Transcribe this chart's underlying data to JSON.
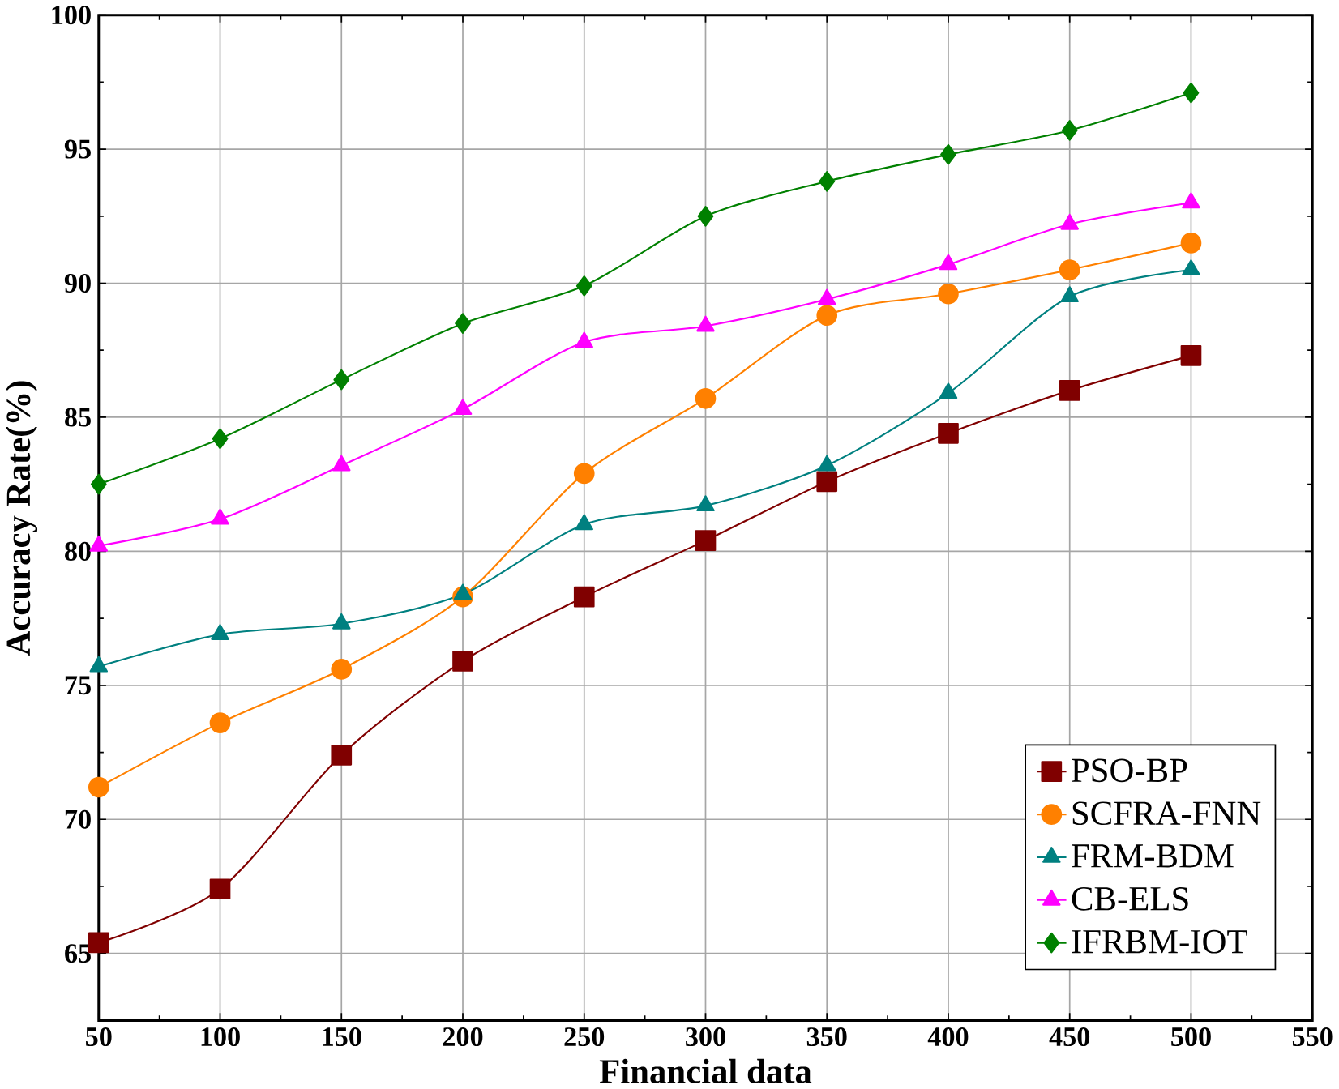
{
  "chart_data": {
    "type": "line",
    "xlabel": "Financial data",
    "ylabel": "Accuracy Rate(%)",
    "x": [
      50,
      100,
      150,
      200,
      250,
      300,
      350,
      400,
      450,
      500
    ],
    "series": [
      {
        "name": "PSO-BP",
        "color": "#800000",
        "marker": "square",
        "values": [
          65.4,
          67.4,
          72.4,
          75.9,
          78.3,
          80.4,
          82.6,
          84.4,
          86.0,
          87.3
        ]
      },
      {
        "name": "SCFRA-FNN",
        "color": "#ff8000",
        "marker": "circle",
        "values": [
          71.2,
          73.6,
          75.6,
          78.3,
          82.9,
          85.7,
          88.8,
          89.6,
          90.5,
          91.5
        ]
      },
      {
        "name": "FRM-BDM",
        "color": "#008080",
        "marker": "triangle",
        "values": [
          75.7,
          76.9,
          77.3,
          78.4,
          81.0,
          81.7,
          83.2,
          85.9,
          89.5,
          90.5
        ]
      },
      {
        "name": "CB-ELS",
        "color": "#ff00ff",
        "marker": "triangle-down",
        "values": [
          80.2,
          81.2,
          83.2,
          85.3,
          87.8,
          88.4,
          89.4,
          90.7,
          92.2,
          93.0
        ]
      },
      {
        "name": "IFRBM-IOT",
        "color": "#008000",
        "marker": "diamond",
        "values": [
          82.5,
          84.2,
          86.4,
          88.5,
          89.9,
          92.5,
          93.8,
          94.8,
          95.7,
          97.1
        ]
      }
    ],
    "xlim": [
      50,
      550
    ],
    "ylim": [
      62.5,
      100
    ],
    "xticks": [
      50,
      100,
      150,
      200,
      250,
      300,
      350,
      400,
      450,
      500,
      550
    ],
    "yticks": [
      65,
      70,
      75,
      80,
      85,
      90,
      95,
      100
    ],
    "grid": true,
    "legend": "bottom right",
    "line_style": "solid"
  }
}
